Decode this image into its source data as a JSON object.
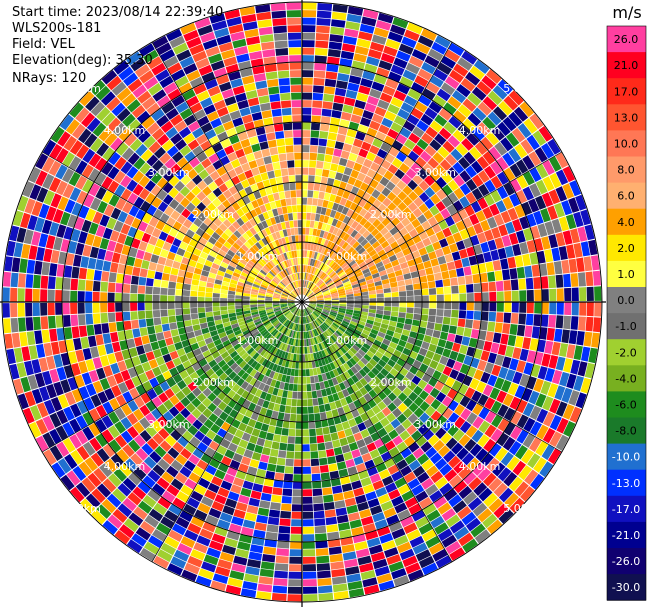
{
  "header": {
    "start_time": "Start time: 2023/08/14 22:39:40",
    "site": "WLS200s-181",
    "field": "Field: VEL",
    "elevation": "Elevation(deg): 35.30",
    "nrays": "NRays: 120"
  },
  "chart_data": {
    "type": "heatmap",
    "projection": "polar-ppi",
    "range_rings": [
      {
        "label": "1.00km",
        "range_km": 1.0
      },
      {
        "label": "2.00km",
        "range_km": 2.0
      },
      {
        "label": "3.00km",
        "range_km": 3.0
      },
      {
        "label": "4.00km",
        "range_km": 4.0
      },
      {
        "label": "5.00km",
        "range_km": 5.0
      }
    ],
    "max_range_km": 5.0,
    "colorbar": {
      "unit": "m/s",
      "ticks": [
        "26.0",
        "21.0",
        "17.0",
        "13.0",
        "10.0",
        "8.0",
        "6.0",
        "4.0",
        "2.0",
        "1.0",
        "0.0",
        "-1.0",
        "-2.0",
        "-4.0",
        "-6.0",
        "-8.0",
        "-10.0",
        "-13.0",
        "-17.0",
        "-21.0",
        "-26.0",
        "-30.0"
      ],
      "colors": [
        "#ff3fa0",
        "#ff0020",
        "#ff2a1a",
        "#ff5530",
        "#ff7755",
        "#ff9a6a",
        "#ffb070",
        "#ffa000",
        "#ffe800",
        "#ffff40",
        "#808080",
        "#707070",
        "#a0d030",
        "#78b020",
        "#1e8c1e",
        "#1a7a2a",
        "#2070d0",
        "#0030ff",
        "#1010c0",
        "#000090",
        "#100070",
        "#101050"
      ]
    },
    "field_summary": {
      "north_sector": "positive 1 to 6 m/s (yellow/orange)",
      "south_sector": "negative -2 to -8 m/s (green)",
      "outer_rings": "noise beyond ~3 km"
    }
  }
}
